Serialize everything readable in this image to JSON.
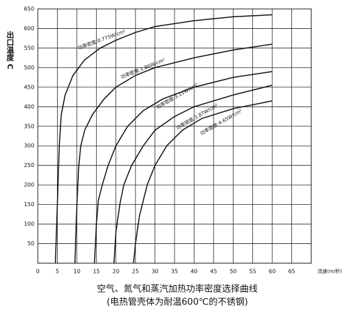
{
  "chart_data": {
    "type": "line",
    "title": "空气、氮气和蒸汽加热功率密度选择曲线",
    "subtitle": "(电热管壳体为耐温600℃的不锈钢)",
    "x_label": "流速(m/秒)",
    "y_label": "出口温度 C",
    "xlim": [
      0,
      70
    ],
    "xticks": [
      0,
      5,
      10,
      15,
      20,
      25,
      30,
      35,
      40,
      45,
      50,
      55,
      60,
      65
    ],
    "ylim": [
      0,
      650
    ],
    "yticks": [
      50,
      100,
      150,
      200,
      250,
      300,
      350,
      400,
      450,
      500,
      550,
      600,
      650
    ],
    "grid": true,
    "series": [
      {
        "name": "功率密度:0.775W/cm²",
        "color": "#111111",
        "x": [
          4.5,
          5,
          5.5,
          6,
          7,
          9,
          12,
          16,
          20,
          25,
          30,
          40,
          50,
          60
        ],
        "values": [
          0,
          150,
          300,
          380,
          430,
          480,
          520,
          550,
          570,
          590,
          605,
          620,
          630,
          635
        ]
      },
      {
        "name": "功率密度:1.86W/cm²",
        "color": "#111111",
        "x": [
          9.5,
          10,
          10.5,
          11,
          12,
          14,
          17,
          20,
          25,
          30,
          40,
          50,
          60
        ],
        "values": [
          0,
          150,
          250,
          300,
          340,
          380,
          420,
          450,
          480,
          500,
          525,
          545,
          560
        ]
      },
      {
        "name": "功率密度:3.11W/cm²",
        "color": "#111111",
        "x": [
          14.5,
          15,
          15.5,
          16.5,
          18,
          20,
          23,
          27,
          32,
          40,
          50,
          60
        ],
        "values": [
          0,
          100,
          160,
          200,
          250,
          300,
          350,
          390,
          420,
          450,
          475,
          490
        ]
      },
      {
        "name": "功率密度:3.87W/cm²",
        "color": "#111111",
        "x": [
          19.5,
          20,
          21,
          22,
          24,
          27,
          30,
          35,
          40,
          50,
          60
        ],
        "values": [
          0,
          80,
          150,
          200,
          250,
          300,
          340,
          375,
          400,
          430,
          455
        ]
      },
      {
        "name": "功率密度:4.65W/cm²",
        "color": "#111111",
        "x": [
          24.5,
          25,
          26,
          28,
          30,
          33,
          37,
          42,
          50,
          60
        ],
        "values": [
          0,
          50,
          120,
          200,
          250,
          300,
          340,
          370,
          395,
          415
        ]
      }
    ]
  }
}
